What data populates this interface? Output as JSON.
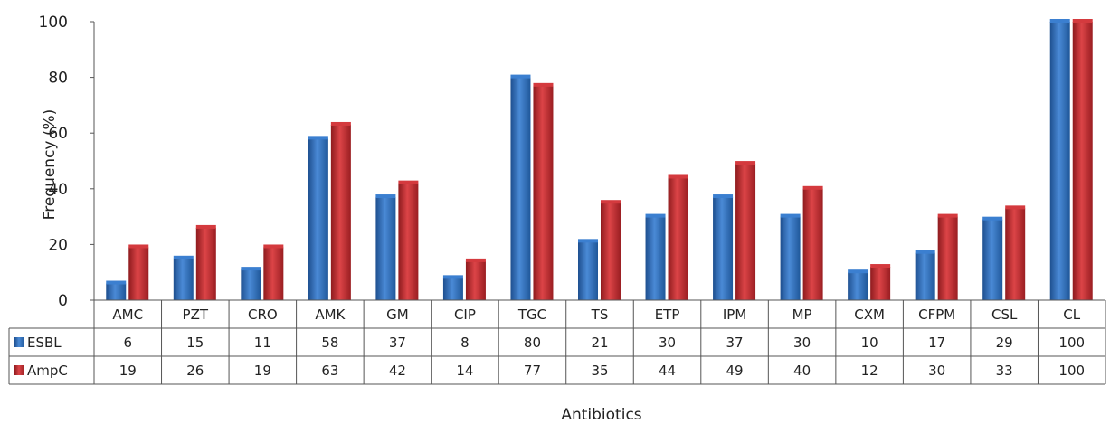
{
  "chart_data": {
    "type": "bar",
    "title": "",
    "xlabel": "Antibiotics",
    "ylabel": "Frequency (%)",
    "ylim": [
      0,
      100
    ],
    "yticks": [
      0,
      20,
      40,
      60,
      80,
      100
    ],
    "grid": false,
    "legend": "data-table",
    "categories": [
      "AMC",
      "PZT",
      "CRO",
      "AMK",
      "GM",
      "CIP",
      "TGC",
      "TS",
      "ETP",
      "IPM",
      "MP",
      "CXM",
      "CFPM",
      "CSL",
      "CL"
    ],
    "series": [
      {
        "name": "ESBL",
        "color": "#2f6db5",
        "values": [
          6,
          15,
          11,
          58,
          37,
          8,
          80,
          21,
          30,
          37,
          30,
          10,
          17,
          29,
          100
        ]
      },
      {
        "name": "AmpC",
        "color": "#c0282c",
        "values": [
          19,
          26,
          19,
          63,
          42,
          14,
          77,
          35,
          44,
          49,
          40,
          12,
          30,
          33,
          100
        ]
      }
    ]
  }
}
